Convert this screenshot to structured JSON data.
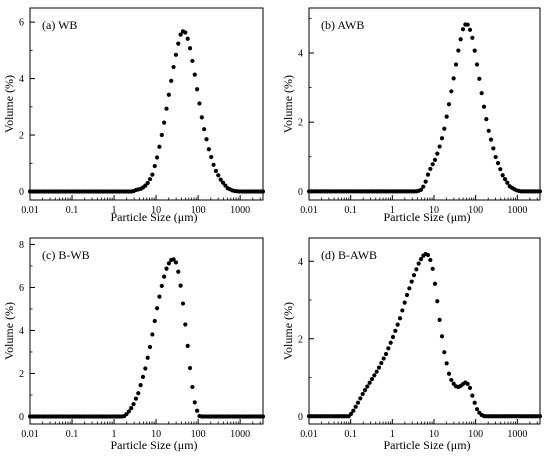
{
  "chart_data": [
    {
      "type": "scatter",
      "title": "(a) WB",
      "xlabel": "Particle Size (μm)",
      "ylabel": "Volume (%)",
      "xscale": "log",
      "xlim": [
        0.01,
        3500
      ],
      "ylim": [
        -0.3,
        6.5
      ],
      "xticks": [
        "0.01",
        "0.1",
        "1",
        "10",
        "100",
        "1000"
      ],
      "yticks": [
        "0",
        "2",
        "4",
        "6"
      ],
      "curve": [
        [
          0.01,
          0
        ],
        [
          2.8,
          0
        ],
        [
          3.2,
          0.05
        ],
        [
          4.5,
          0.1
        ],
        [
          6,
          0.25
        ],
        [
          8,
          0.55
        ],
        [
          11,
          1.3
        ],
        [
          15,
          2.3
        ],
        [
          20,
          3.4
        ],
        [
          26,
          4.4
        ],
        [
          32,
          5.1
        ],
        [
          38,
          5.55
        ],
        [
          45,
          5.7
        ],
        [
          52,
          5.6
        ],
        [
          62,
          5.2
        ],
        [
          78,
          4.4
        ],
        [
          100,
          3.4
        ],
        [
          130,
          2.4
        ],
        [
          180,
          1.5
        ],
        [
          250,
          0.8
        ],
        [
          350,
          0.4
        ],
        [
          500,
          0.12
        ],
        [
          700,
          0.02
        ],
        [
          1000,
          0
        ],
        [
          3500,
          0
        ]
      ]
    },
    {
      "type": "scatter",
      "title": "(b) AWB",
      "xlabel": "Particle Size (μm)",
      "ylabel": "Volume (%)",
      "xscale": "log",
      "xlim": [
        0.01,
        3500
      ],
      "ylim": [
        -0.25,
        5.3
      ],
      "xticks": [
        "0.01",
        "0.1",
        "1",
        "10",
        "100",
        "1000"
      ],
      "yticks": [
        "0",
        "2",
        "4"
      ],
      "curve": [
        [
          0.01,
          0
        ],
        [
          4,
          0
        ],
        [
          5,
          0.05
        ],
        [
          6,
          0.2
        ],
        [
          7,
          0.45
        ],
        [
          8.5,
          0.7
        ],
        [
          10.5,
          0.9
        ],
        [
          13,
          1.2
        ],
        [
          17,
          1.7
        ],
        [
          22,
          2.4
        ],
        [
          30,
          3.3
        ],
        [
          40,
          4.2
        ],
        [
          50,
          4.7
        ],
        [
          58,
          4.85
        ],
        [
          68,
          4.8
        ],
        [
          85,
          4.4
        ],
        [
          110,
          3.6
        ],
        [
          150,
          2.6
        ],
        [
          200,
          1.8
        ],
        [
          300,
          1.0
        ],
        [
          450,
          0.45
        ],
        [
          650,
          0.15
        ],
        [
          900,
          0.04
        ],
        [
          1200,
          0
        ],
        [
          3500,
          0
        ]
      ]
    },
    {
      "type": "scatter",
      "title": "(c) B-WB",
      "xlabel": "Particle Size (μm)",
      "ylabel": "Volume (%)",
      "xscale": "log",
      "xlim": [
        0.01,
        3500
      ],
      "ylim": [
        -0.35,
        8.3
      ],
      "xticks": [
        "0.01",
        "0.1",
        "1",
        "10",
        "100",
        "1000"
      ],
      "yticks": [
        "0",
        "2",
        "4",
        "6",
        "8"
      ],
      "curve": [
        [
          0.01,
          0
        ],
        [
          1.7,
          0
        ],
        [
          2.1,
          0.15
        ],
        [
          2.8,
          0.5
        ],
        [
          3.8,
          1.1
        ],
        [
          5.5,
          2.2
        ],
        [
          7.5,
          3.4
        ],
        [
          10,
          4.8
        ],
        [
          13,
          5.9
        ],
        [
          17,
          6.8
        ],
        [
          21,
          7.2
        ],
        [
          25,
          7.35
        ],
        [
          30,
          7.15
        ],
        [
          36,
          6.5
        ],
        [
          44,
          5.2
        ],
        [
          55,
          3.5
        ],
        [
          68,
          1.8
        ],
        [
          82,
          0.7
        ],
        [
          100,
          0.1
        ],
        [
          110,
          0
        ],
        [
          3500,
          0
        ]
      ]
    },
    {
      "type": "scatter",
      "title": "(d) B-AWB",
      "xlabel": "Particle Size (μm)",
      "ylabel": "Volume (%)",
      "xscale": "log",
      "xlim": [
        0.01,
        3500
      ],
      "ylim": [
        -0.2,
        4.6
      ],
      "xticks": [
        "0.01",
        "0.1",
        "1",
        "10",
        "100",
        "1000"
      ],
      "yticks": [
        "0",
        "2",
        "4"
      ],
      "curve": [
        [
          0.01,
          0
        ],
        [
          0.09,
          0
        ],
        [
          0.11,
          0.1
        ],
        [
          0.15,
          0.35
        ],
        [
          0.2,
          0.6
        ],
        [
          0.3,
          0.9
        ],
        [
          0.45,
          1.2
        ],
        [
          0.7,
          1.6
        ],
        [
          1,
          2.0
        ],
        [
          1.5,
          2.5
        ],
        [
          2.2,
          3.1
        ],
        [
          3.2,
          3.6
        ],
        [
          4.5,
          4.0
        ],
        [
          6,
          4.2
        ],
        [
          7.5,
          4.15
        ],
        [
          9,
          3.9
        ],
        [
          11,
          3.3
        ],
        [
          14,
          2.4
        ],
        [
          18,
          1.6
        ],
        [
          24,
          1.0
        ],
        [
          32,
          0.78
        ],
        [
          40,
          0.75
        ],
        [
          48,
          0.82
        ],
        [
          58,
          0.88
        ],
        [
          70,
          0.8
        ],
        [
          85,
          0.5
        ],
        [
          105,
          0.2
        ],
        [
          130,
          0.05
        ],
        [
          160,
          0
        ],
        [
          3500,
          0
        ]
      ]
    }
  ]
}
